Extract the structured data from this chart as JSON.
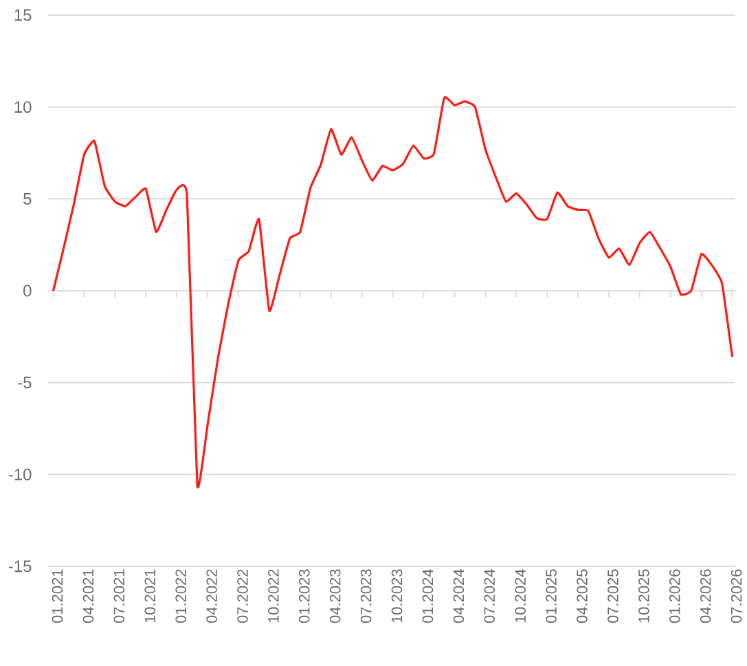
{
  "chart_data": {
    "type": "line",
    "x": [
      "2021-01",
      "2021-02",
      "2021-03",
      "2021-04",
      "2021-05",
      "2021-06",
      "2021-07",
      "2021-08",
      "2021-09",
      "2021-10",
      "2021-11",
      "2021-12",
      "2022-01",
      "2022-02",
      "2022-03",
      "2022-04",
      "2022-05",
      "2022-06",
      "2022-07",
      "2022-08",
      "2022-09",
      "2022-10",
      "2022-11",
      "2022-12",
      "2023-01",
      "2023-02",
      "2023-03",
      "2023-04",
      "2023-05",
      "2023-06",
      "2023-07",
      "2023-08",
      "2023-09",
      "2023-10",
      "2023-11",
      "2023-12",
      "2024-01",
      "2024-02",
      "2024-03",
      "2024-04",
      "2024-05",
      "2024-06",
      "2024-07",
      "2024-08",
      "2024-09",
      "2024-10",
      "2024-11",
      "2024-12",
      "2025-01",
      "2025-02",
      "2025-03",
      "2025-04",
      "2025-05",
      "2025-06",
      "2025-07",
      "2025-08",
      "2025-09",
      "2025-10",
      "2025-11",
      "2025-12",
      "2026-01",
      "2026-02",
      "2026-03",
      "2026-04",
      "2026-05",
      "2026-06",
      "2026-07"
    ],
    "series": [
      {
        "color": "#ff1a12",
        "values": [
          0,
          2.3,
          4.7,
          7.4,
          8.15,
          5.7,
          4.85,
          4.6,
          5.1,
          5.55,
          3.2,
          4.4,
          5.5,
          5.2,
          -10.6,
          -7.3,
          -3.7,
          -0.75,
          1.65,
          2.15,
          3.9,
          -1.1,
          0.85,
          2.85,
          3.2,
          5.6,
          6.85,
          8.8,
          7.4,
          8.35,
          7.1,
          6.0,
          6.8,
          6.55,
          6.9,
          7.9,
          7.2,
          7.45,
          10.5,
          10.1,
          10.3,
          10.0,
          7.7,
          6.2,
          4.85,
          5.3,
          4.7,
          3.95,
          3.9,
          5.35,
          4.6,
          4.4,
          4.35,
          2.85,
          1.8,
          2.3,
          1.4,
          2.6,
          3.2,
          2.3,
          1.3,
          -0.2,
          0.0,
          2.0,
          1.4,
          0.4,
          -3.6
        ]
      }
    ],
    "xlim": [
      "2020-12-16",
      "2026-07-10"
    ],
    "xticks": [
      {
        "value": "2021-01",
        "label": "01.2021"
      },
      {
        "value": "2021-04",
        "label": "04.2021"
      },
      {
        "value": "2021-07",
        "label": "07.2021"
      },
      {
        "value": "2021-10",
        "label": "10.2021"
      },
      {
        "value": "2022-01",
        "label": "01.2022"
      },
      {
        "value": "2022-04",
        "label": "04.2022"
      },
      {
        "value": "2022-07",
        "label": "07.2022"
      },
      {
        "value": "2022-10",
        "label": "10.2022"
      },
      {
        "value": "2023-01",
        "label": "01.2023"
      },
      {
        "value": "2023-04",
        "label": "04.2023"
      },
      {
        "value": "2023-07",
        "label": "07.2023"
      },
      {
        "value": "2023-10",
        "label": "10.2023"
      },
      {
        "value": "2024-01",
        "label": "01.2024"
      },
      {
        "value": "2024-04",
        "label": "04.2024"
      },
      {
        "value": "2024-07",
        "label": "07.2024"
      },
      {
        "value": "2024-10",
        "label": "10.2024"
      },
      {
        "value": "2025-01",
        "label": "01.2025"
      },
      {
        "value": "2025-04",
        "label": "04.2025"
      },
      {
        "value": "2025-07",
        "label": "07.2025"
      },
      {
        "value": "2025-10",
        "label": "10.2025"
      },
      {
        "value": "2026-01",
        "label": "01.2026"
      },
      {
        "value": "2026-04",
        "label": "04.2026"
      },
      {
        "value": "2026-07",
        "label": "07.2026"
      }
    ],
    "ylim": [
      -15,
      15
    ],
    "yticks": [
      -15,
      -10,
      -5,
      0,
      5,
      10,
      15
    ],
    "grid": "y"
  }
}
